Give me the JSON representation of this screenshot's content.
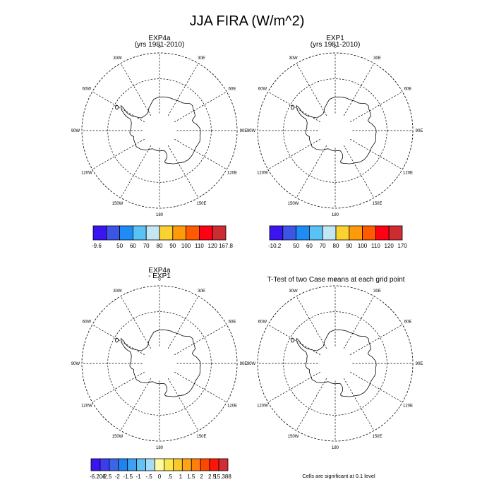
{
  "figure": {
    "title": "JJA FIRA (W/m^2)"
  },
  "lon_labels": [
    "0",
    "30E",
    "60E",
    "90E",
    "120E",
    "150E",
    "180",
    "150W",
    "120W",
    "90W",
    "60W",
    "30W"
  ],
  "panels": [
    {
      "title_lines": [
        "EXP4a",
        "(yrs 1981-2010)"
      ],
      "colorbar": {
        "colors": [
          "#3c14f0",
          "#3c55e6",
          "#1e8cf5",
          "#5ac3f5",
          "#c3e6f5",
          "#fad232",
          "#ff9b0a",
          "#ff5a00",
          "#ff0014",
          "#cd2d32"
        ],
        "labels": [
          "-9.6",
          "50",
          "60",
          "70",
          "80",
          "90",
          "100",
          "110",
          "120",
          "167.8"
        ]
      }
    },
    {
      "title_lines": [
        "EXP1",
        "(yrs 1981-2010)"
      ],
      "colorbar": {
        "colors": [
          "#3c14f0",
          "#3c55e6",
          "#1e8cf5",
          "#5ac3f5",
          "#c3e6f5",
          "#fad232",
          "#ff9b0a",
          "#ff5a00",
          "#ff0014",
          "#cd2d32"
        ],
        "labels": [
          "-10.2",
          "50",
          "60",
          "70",
          "80",
          "90",
          "100",
          "110",
          "120",
          "170"
        ]
      }
    },
    {
      "title_lines": [
        "EXP4a",
        "- EXP1"
      ],
      "colorbar": {
        "colors": [
          "#3c14f0",
          "#3c3cf0",
          "#3c64e6",
          "#1e82f0",
          "#3ca0f5",
          "#64c3f5",
          "#a5dcf5",
          "#fffaa0",
          "#fae650",
          "#fac828",
          "#ffa514",
          "#ff7d0a",
          "#ff4600",
          "#ff140a",
          "#d22d32"
        ],
        "labels": [
          "-6.208",
          "-2.5",
          "-2",
          "-1.5",
          "-1",
          "-.5",
          "0",
          ".5",
          "1",
          "1.5",
          "2",
          "2.5",
          "15.388"
        ]
      }
    },
    {
      "title_lines": [
        "T-Test of two Case means at each grid point"
      ],
      "note": "Cells are significant at 0.1 level"
    }
  ]
}
